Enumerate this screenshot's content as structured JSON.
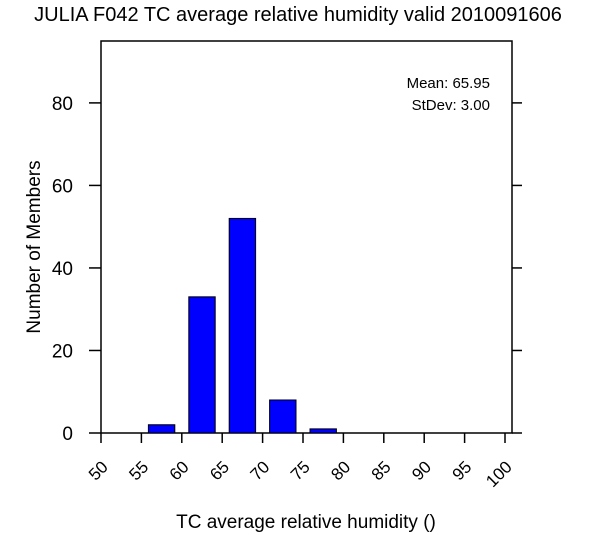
{
  "chart_data": {
    "type": "bar",
    "title": "JULIA F042 TC average relative humidity valid 2010091606",
    "xlabel": "TC average relative humidity ()",
    "ylabel": "Number of Members",
    "xlim": [
      50,
      100
    ],
    "ylim": [
      0,
      95
    ],
    "x_ticks": [
      "50",
      "55",
      "60",
      "65",
      "70",
      "75",
      "80",
      "85",
      "90",
      "95",
      "100"
    ],
    "y_ticks": [
      "0",
      "20",
      "40",
      "60",
      "80"
    ],
    "bins": [
      {
        "from": 55,
        "to": 60,
        "value": 2
      },
      {
        "from": 60,
        "to": 65,
        "value": 33
      },
      {
        "from": 65,
        "to": 70,
        "value": 52
      },
      {
        "from": 70,
        "to": 75,
        "value": 8
      },
      {
        "from": 75,
        "to": 80,
        "value": 1
      }
    ],
    "bar_color": "#0000ff",
    "stats": {
      "mean_label": "Mean: 65.95",
      "stdev_label": "StDev: 3.00"
    }
  }
}
